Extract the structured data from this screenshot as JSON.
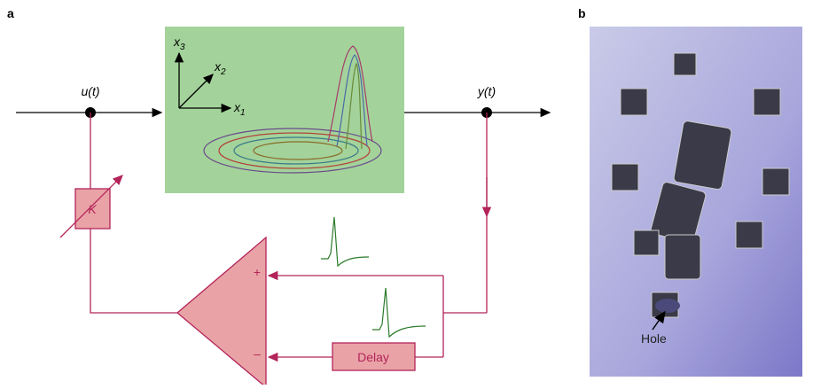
{
  "panels": {
    "a": "a",
    "b": "b"
  },
  "signals": {
    "input": "u(t)",
    "output": "y(t)"
  },
  "axes": [
    {
      "symbol": "x",
      "subscript": "3"
    },
    {
      "symbol": "x",
      "subscript": "2"
    },
    {
      "symbol": "x",
      "subscript": "1"
    }
  ],
  "gain": "K",
  "comparator": {
    "plus": "+",
    "minus": "–"
  },
  "delay": "Delay",
  "photo_label": "Hole"
}
